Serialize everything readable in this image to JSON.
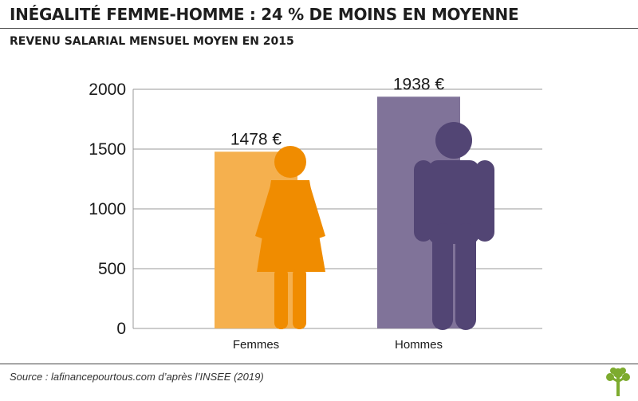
{
  "title": "INÉGALITÉ FEMME-HOMME : 24 % DE MOINS EN MOYENNE",
  "subtitle": "REVENU SALARIAL MENSUEL MOYEN EN 2015",
  "source": "Source : lafinancepourtous.com d’après l’INSEE (2019)",
  "colors": {
    "femmes_bar": "#f5b04e",
    "femmes_figure": "#f08c00",
    "hommes_bar": "#807399",
    "hommes_figure": "#524574",
    "grid": "#9a9a9a",
    "logo": "#7dab2e"
  },
  "icons": [
    "woman-figure-icon",
    "man-figure-icon",
    "tree-logo-icon"
  ],
  "chart_data": {
    "type": "bar",
    "categories": [
      "Femmes",
      "Hommes"
    ],
    "values": [
      1478,
      1938
    ],
    "value_labels": [
      "1478 €",
      "1938 €"
    ],
    "yticks": [
      "0",
      "500",
      "1000",
      "1500",
      "2000"
    ],
    "ylim": [
      0,
      2000
    ],
    "grid": true
  }
}
